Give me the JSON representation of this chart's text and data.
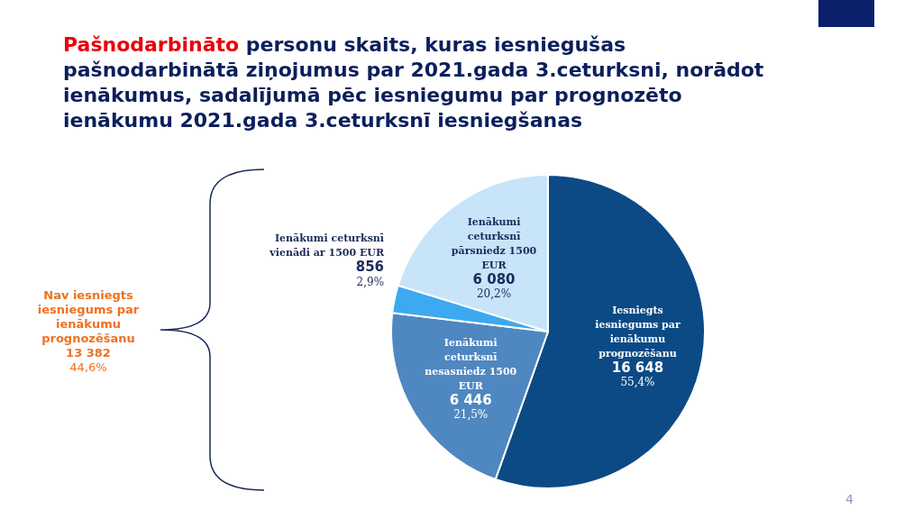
{
  "chart_data": {
    "type": "pie",
    "title": "Pašnodarbināto personu skaits, kuras iesniegušas pašnodarbinātā ziņojumus par 2021.gada 3.ceturksni, norādot ienākumus, sadalījumā pēc iesniegumu par prognozēto ienākumu 2021.gada 3.ceturksnī iesniegšanas",
    "categories": [
      "Iesniegts iesniegums par ienākumu prognozēšanu",
      "Ienākumi ceturksnī nesasniedz 1500 EUR",
      "Ienākumi ceturksnī vienādi ar 1500 EUR",
      "Ienākumi ceturksnī pārsniedz 1500 EUR"
    ],
    "values": [
      16648,
      6446,
      856,
      6080
    ],
    "value_labels": [
      "16 648\n55,4%",
      "6 446\n21,5%",
      "856\n2,9%",
      "6 080\n20,2%"
    ],
    "colors": [
      "#0b4a85",
      "#4f87c0",
      "#3da9f0",
      "#c7e4f8"
    ],
    "annotations": [
      "Nav iesniegts iesniegums par ienākumu prognozēšanu\n13 382\n44,6%",
      "4"
    ],
    "legend": false
  }
}
